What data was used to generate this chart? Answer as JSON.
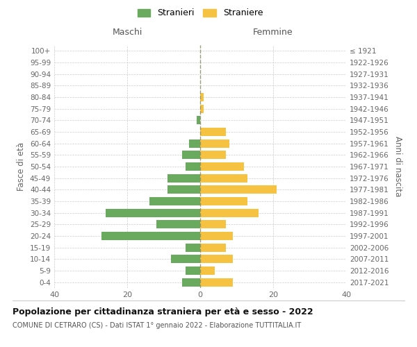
{
  "age_groups": [
    "0-4",
    "5-9",
    "10-14",
    "15-19",
    "20-24",
    "25-29",
    "30-34",
    "35-39",
    "40-44",
    "45-49",
    "50-54",
    "55-59",
    "60-64",
    "65-69",
    "70-74",
    "75-79",
    "80-84",
    "85-89",
    "90-94",
    "95-99",
    "100+"
  ],
  "birth_years": [
    "2017-2021",
    "2012-2016",
    "2007-2011",
    "2002-2006",
    "1997-2001",
    "1992-1996",
    "1987-1991",
    "1982-1986",
    "1977-1981",
    "1972-1976",
    "1967-1971",
    "1962-1966",
    "1957-1961",
    "1952-1956",
    "1947-1951",
    "1942-1946",
    "1937-1941",
    "1932-1936",
    "1927-1931",
    "1922-1926",
    "≤ 1921"
  ],
  "maschi": [
    5,
    4,
    8,
    4,
    27,
    12,
    26,
    14,
    9,
    9,
    4,
    5,
    3,
    0,
    1,
    0,
    0,
    0,
    0,
    0,
    0
  ],
  "femmine": [
    9,
    4,
    9,
    7,
    9,
    7,
    16,
    13,
    21,
    13,
    12,
    7,
    8,
    7,
    0,
    1,
    1,
    0,
    0,
    0,
    0
  ],
  "color_maschi": "#6aaa5e",
  "color_femmine": "#f5c242",
  "title": "Popolazione per cittadinanza straniera per età e sesso - 2022",
  "subtitle": "COMUNE DI CETRARO (CS) - Dati ISTAT 1° gennaio 2022 - Elaborazione TUTTITALIA.IT",
  "xlabel_left": "Maschi",
  "xlabel_right": "Femmine",
  "ylabel_left": "Fasce di età",
  "ylabel_right": "Anni di nascita",
  "xlim": 40,
  "legend_stranieri": "Stranieri",
  "legend_straniere": "Straniere",
  "background_color": "#ffffff",
  "grid_color": "#cccccc"
}
